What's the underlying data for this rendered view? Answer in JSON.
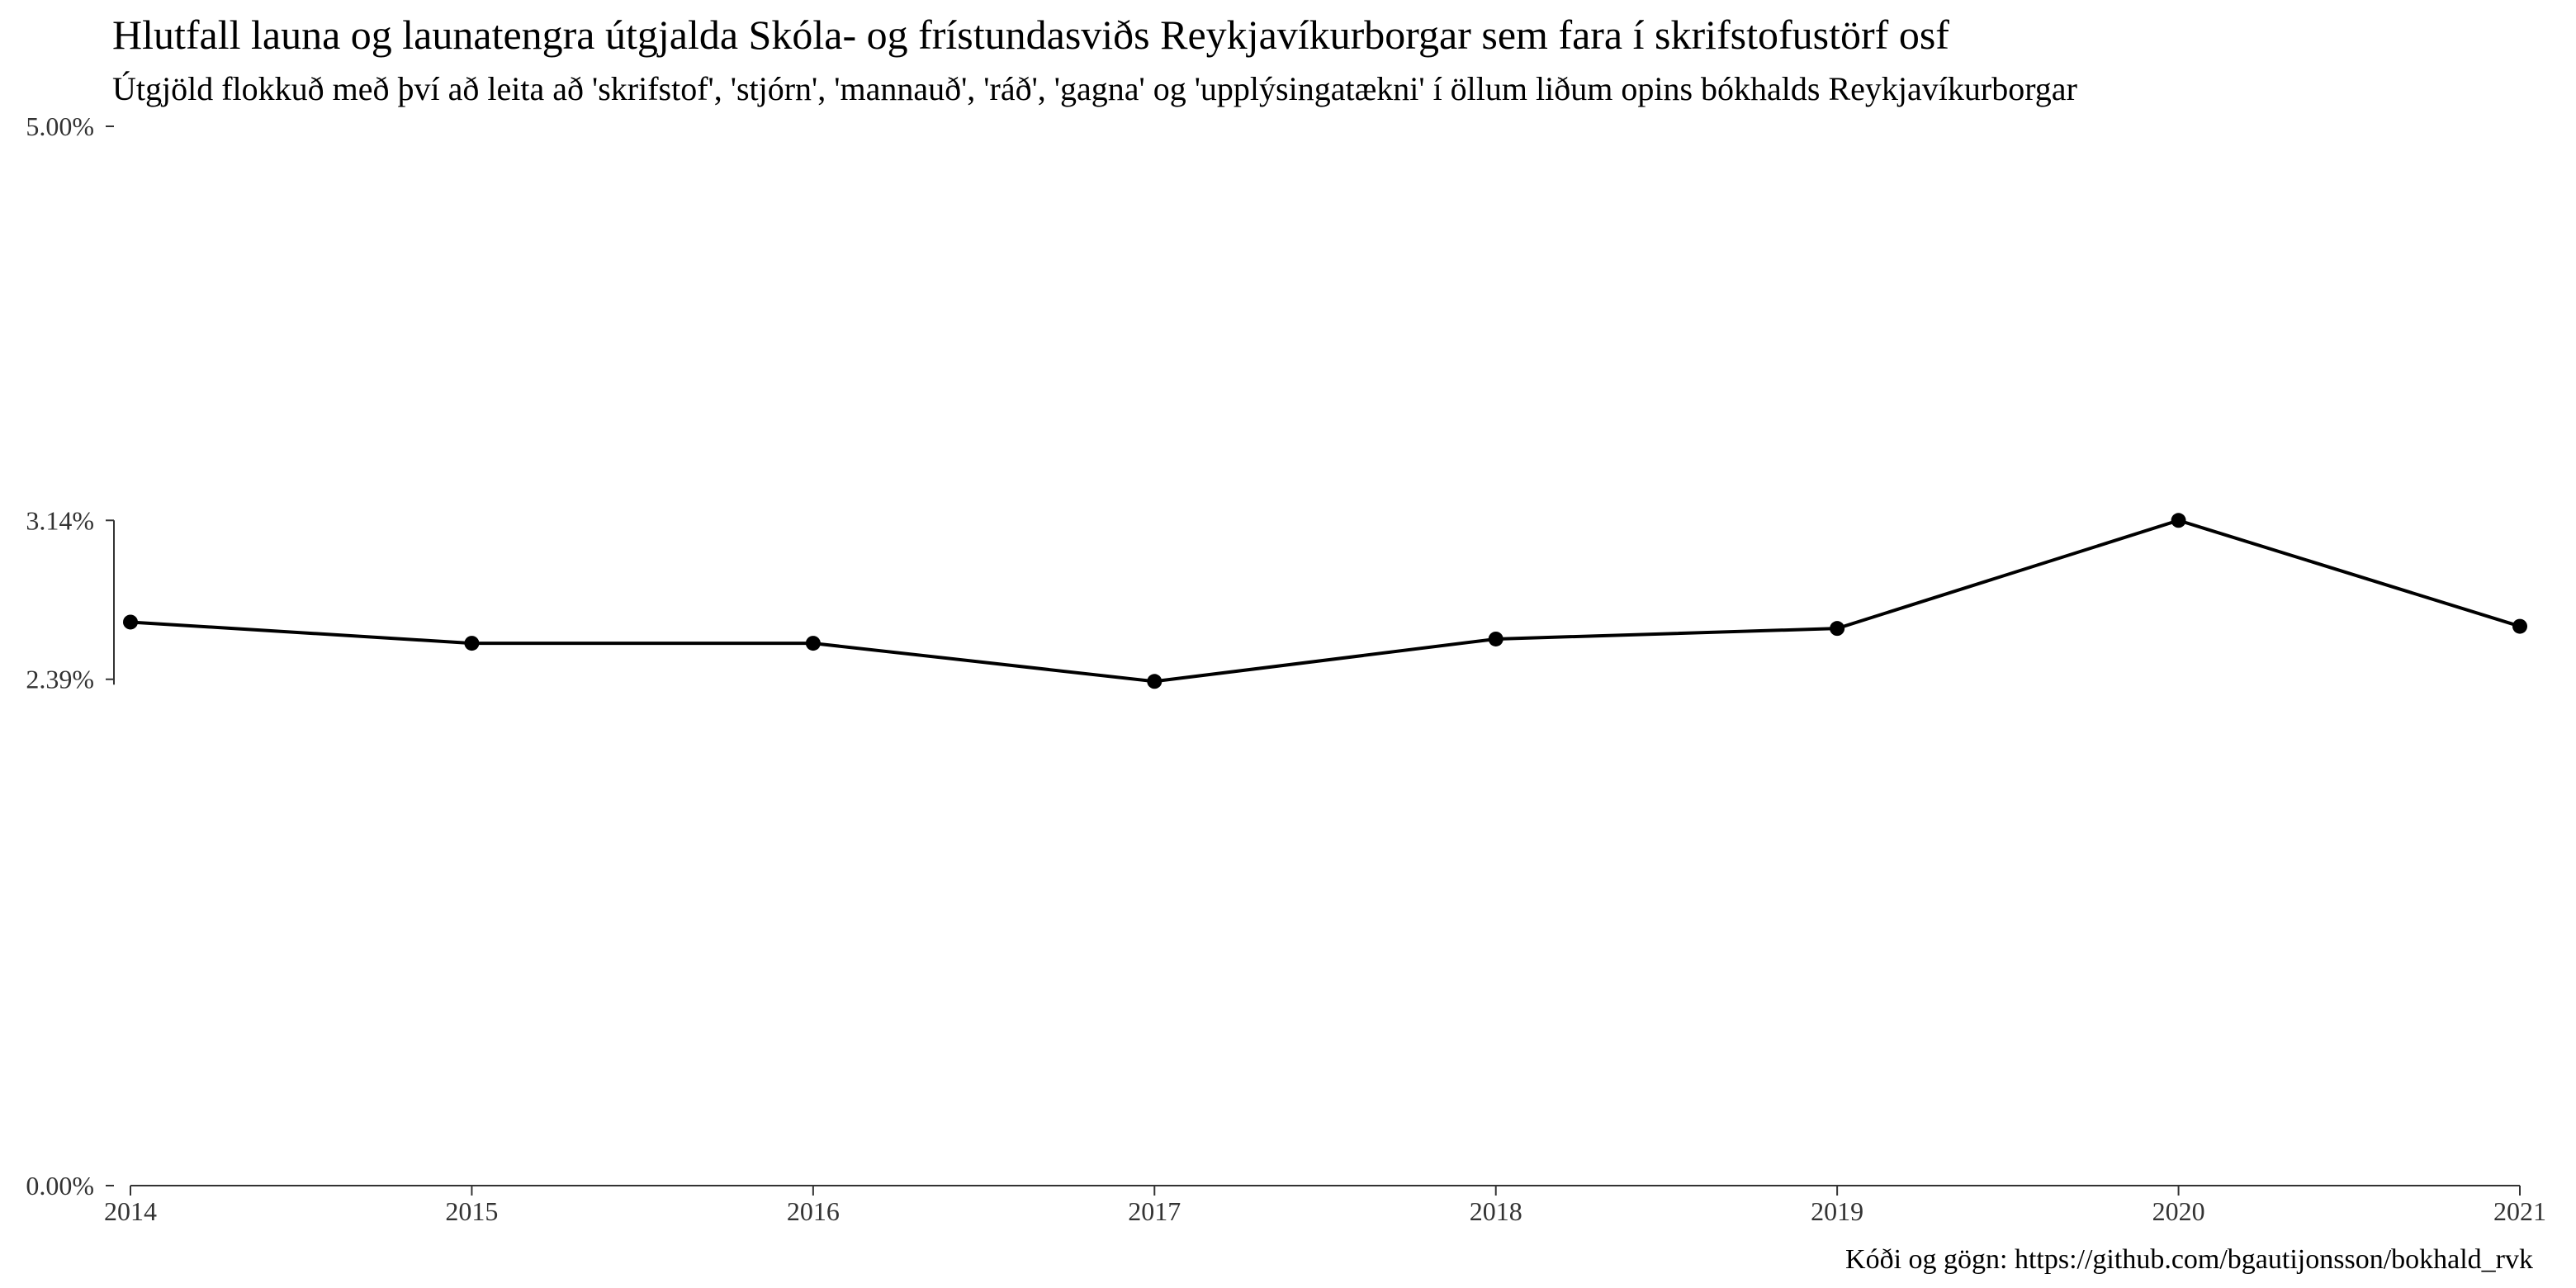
{
  "chart_data": {
    "type": "line",
    "title": "Hlutfall launa og launatengra útgjalda Skóla- og frístundasviðs Reykjavíkurborgar sem fara í skrifstofustörf osf",
    "subtitle": "Útgjöld flokkuð með því að leita að 'skrifstof', 'stjórn', 'mannauð', 'ráð', 'gagna' og 'upplýsingatækni' í öllum liðum opins bókhalds Reykjavíkurborgar",
    "caption": "Kóði og gögn: https://github.com/bgautijonsson/bokhald_rvk",
    "xlabel": "",
    "ylabel": "",
    "x": [
      2014,
      2015,
      2016,
      2017,
      2018,
      2019,
      2020,
      2021
    ],
    "series": [
      {
        "values": [
          2.66,
          2.56,
          2.56,
          2.38,
          2.58,
          2.63,
          3.14,
          2.64
        ]
      }
    ],
    "x_ticks": [
      "2014",
      "2015",
      "2016",
      "2017",
      "2018",
      "2019",
      "2020",
      "2021"
    ],
    "y_ticks": [
      {
        "value": 0,
        "label": "0.00%"
      },
      {
        "value": 2.39,
        "label": "2.39%"
      },
      {
        "value": 3.14,
        "label": "3.14%"
      },
      {
        "value": 5,
        "label": "5.00%"
      }
    ],
    "xlim": [
      2014,
      2021
    ],
    "ylim": [
      0,
      5
    ],
    "grid": false,
    "legend": "none",
    "colors": {
      "line": "#000000",
      "point": "#000000",
      "axis": "#333333"
    }
  }
}
